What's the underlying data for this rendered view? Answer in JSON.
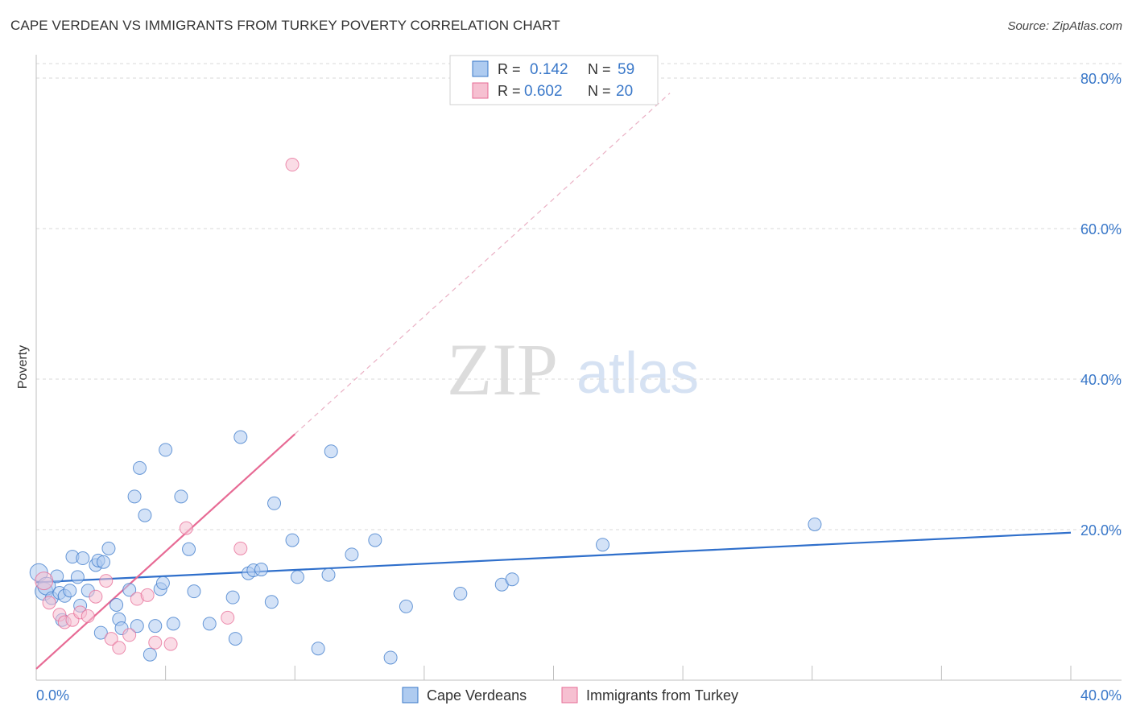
{
  "title": "CAPE VERDEAN VS IMMIGRANTS FROM TURKEY POVERTY CORRELATION CHART",
  "source": "Source: ZipAtlas.com",
  "watermark": {
    "zip": "ZIP",
    "atlas": "atlas"
  },
  "colors": {
    "blue": "#3a78c9",
    "blue_fill": "#aecbf0",
    "blue_line": "#2f6fcb",
    "pink": "#e76b95",
    "pink_fill": "#f6c0d1",
    "axis_text": "#3a78c9",
    "grid": "#d9d9d9"
  },
  "chart_data": {
    "type": "scatter",
    "title": "CAPE VERDEAN VS IMMIGRANTS FROM TURKEY POVERTY CORRELATION CHART",
    "xlabel": "",
    "ylabel": "Poverty",
    "xlim": [
      0,
      40
    ],
    "ylim": [
      0,
      80
    ],
    "x_ticks": [
      {
        "value": 0,
        "label": "0.0%"
      },
      {
        "value": 40,
        "label": "40.0%"
      }
    ],
    "y_ticks": [
      {
        "value": 20,
        "label": "20.0%"
      },
      {
        "value": 40,
        "label": "40.0%"
      },
      {
        "value": 60,
        "label": "60.0%"
      },
      {
        "value": 80,
        "label": "80.0%"
      }
    ],
    "legend": {
      "placement": "top-center",
      "entries": [
        {
          "r_label": "R =",
          "r_value": "0.142",
          "n_label": "N =",
          "n_value": "59"
        },
        {
          "r_label": "R =",
          "r_value": "0.602",
          "n_label": "N =",
          "n_value": "20"
        }
      ]
    },
    "bottom_legend": [
      "Cape Verdeans",
      "Immigrants from Turkey"
    ],
    "series": [
      {
        "name": "Cape Verdeans",
        "color": "#3a78c9",
        "fill": "#aecbf0",
        "trend": {
          "x1": 0,
          "y1": 13.0,
          "x2": 40,
          "y2": 19.6,
          "style": "solid"
        },
        "points": [
          [
            0.1,
            14.3,
            "lg"
          ],
          [
            0.3,
            11.8,
            "lg"
          ],
          [
            0.4,
            12.5,
            "lg"
          ],
          [
            0.6,
            10.9
          ],
          [
            0.8,
            13.8
          ],
          [
            0.9,
            11.6
          ],
          [
            1.0,
            8.0
          ],
          [
            1.1,
            11.2
          ],
          [
            1.3,
            11.9
          ],
          [
            1.4,
            16.4
          ],
          [
            1.6,
            13.7
          ],
          [
            1.7,
            9.9
          ],
          [
            1.8,
            16.2
          ],
          [
            2.0,
            11.9
          ],
          [
            2.3,
            15.3
          ],
          [
            2.4,
            15.9
          ],
          [
            2.5,
            6.3
          ],
          [
            2.6,
            15.7
          ],
          [
            2.8,
            17.5
          ],
          [
            3.1,
            10.0
          ],
          [
            3.2,
            8.1
          ],
          [
            3.3,
            6.9
          ],
          [
            3.6,
            12.0
          ],
          [
            3.8,
            24.4
          ],
          [
            3.9,
            7.2
          ],
          [
            4.0,
            28.2
          ],
          [
            4.2,
            21.9
          ],
          [
            4.4,
            3.4
          ],
          [
            4.6,
            7.2
          ],
          [
            4.8,
            12.1
          ],
          [
            4.9,
            12.9
          ],
          [
            5.0,
            30.6
          ],
          [
            5.3,
            7.5
          ],
          [
            5.6,
            24.4
          ],
          [
            5.9,
            17.4
          ],
          [
            6.1,
            11.8
          ],
          [
            6.7,
            7.5
          ],
          [
            7.6,
            11.0
          ],
          [
            7.7,
            5.5
          ],
          [
            7.9,
            32.3
          ],
          [
            8.2,
            14.2
          ],
          [
            8.4,
            14.6
          ],
          [
            8.7,
            14.7
          ],
          [
            9.1,
            10.4
          ],
          [
            9.2,
            23.5
          ],
          [
            9.9,
            18.6
          ],
          [
            10.1,
            13.7
          ],
          [
            10.9,
            4.2
          ],
          [
            11.3,
            14.0
          ],
          [
            11.4,
            30.4
          ],
          [
            12.2,
            16.7
          ],
          [
            13.1,
            18.6
          ],
          [
            13.7,
            3.0
          ],
          [
            14.3,
            9.8
          ],
          [
            16.4,
            11.5
          ],
          [
            18.0,
            12.7
          ],
          [
            18.4,
            13.4
          ],
          [
            21.9,
            18.0
          ],
          [
            30.1,
            20.7
          ]
        ]
      },
      {
        "name": "Immigrants from Turkey",
        "color": "#e76b95",
        "fill": "#f6c0d1",
        "trend": {
          "x1": 0,
          "y1": 1.5,
          "x2": 10.0,
          "y2": 32.7,
          "style": "solid",
          "ext_x2": 24.5,
          "ext_y2": 78.0,
          "ext_style": "dashed"
        },
        "points": [
          [
            0.3,
            13.2,
            "lg"
          ],
          [
            0.5,
            10.3
          ],
          [
            0.9,
            8.7
          ],
          [
            1.1,
            7.7
          ],
          [
            1.4,
            8.0
          ],
          [
            1.7,
            9.0
          ],
          [
            2.0,
            8.5
          ],
          [
            2.3,
            11.1
          ],
          [
            2.7,
            13.2
          ],
          [
            2.9,
            5.5
          ],
          [
            3.2,
            4.3
          ],
          [
            3.6,
            6.0
          ],
          [
            3.9,
            10.8
          ],
          [
            4.3,
            11.3
          ],
          [
            4.6,
            5.0
          ],
          [
            5.2,
            4.8
          ],
          [
            5.8,
            20.2
          ],
          [
            7.4,
            8.3
          ],
          [
            7.9,
            17.5
          ],
          [
            9.9,
            68.5
          ]
        ]
      }
    ]
  }
}
